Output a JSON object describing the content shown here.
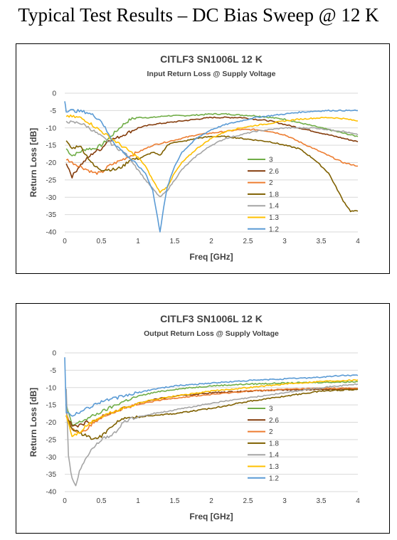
{
  "page": {
    "heading": "Typical Test Results – DC Bias Sweep @ 12 K"
  },
  "chart_data": [
    {
      "type": "line",
      "title": "CITLF3 SN1006L 12 K",
      "subtitle": "Input Return Loss @ Supply Voltage",
      "xlabel": "Freq [GHz]",
      "ylabel": "Return Loss [dB]",
      "xlim": [
        0,
        4
      ],
      "ylim": [
        -40,
        0
      ],
      "xticks": [
        "0",
        "0.5",
        "1",
        "1.5",
        "2",
        "2.5",
        "3",
        "3.5",
        "4"
      ],
      "yticks": [
        "0",
        "-5",
        "-10",
        "-15",
        "-20",
        "-25",
        "-30",
        "-35",
        "-40"
      ],
      "grid": true,
      "legend_position": "right",
      "series": [
        {
          "name": "3",
          "color": "#70ad47",
          "x": [
            0.02,
            0.1,
            0.2,
            0.3,
            0.4,
            0.5,
            0.6,
            0.7,
            0.8,
            0.9,
            1.0,
            1.2,
            1.4,
            1.6,
            1.8,
            2.0,
            2.2,
            2.4,
            2.6,
            2.8,
            3.0,
            3.2,
            3.4,
            3.6,
            3.8,
            4.0
          ],
          "y": [
            -16,
            -18,
            -17,
            -16,
            -16,
            -15,
            -13,
            -11,
            -9,
            -7.5,
            -7,
            -7,
            -6.5,
            -6.5,
            -6.3,
            -6,
            -6,
            -6.3,
            -6.5,
            -7,
            -7.5,
            -8.5,
            -9.5,
            -10.5,
            -11.5,
            -12.5
          ]
        },
        {
          "name": "2.6",
          "color": "#843c0c",
          "x": [
            0.02,
            0.1,
            0.2,
            0.3,
            0.4,
            0.5,
            0.6,
            0.7,
            0.8,
            0.9,
            1.0,
            1.2,
            1.4,
            1.6,
            1.8,
            2.0,
            2.2,
            2.4,
            2.6,
            2.8,
            3.0,
            3.2,
            3.4,
            3.6,
            3.8,
            4.0
          ],
          "y": [
            -20,
            -24,
            -21,
            -19,
            -17,
            -16,
            -13.5,
            -13,
            -12,
            -11,
            -10,
            -9,
            -8.5,
            -8,
            -7.5,
            -7,
            -7,
            -7,
            -7.5,
            -8,
            -9,
            -10,
            -11,
            -12,
            -13,
            -14
          ]
        },
        {
          "name": "2",
          "color": "#ed7d31",
          "x": [
            0.02,
            0.1,
            0.2,
            0.3,
            0.4,
            0.5,
            0.6,
            0.7,
            0.8,
            1.0,
            1.2,
            1.4,
            1.6,
            1.8,
            2.0,
            2.2,
            2.4,
            2.6,
            2.8,
            3.0,
            3.2,
            3.4,
            3.6,
            3.8,
            4.0
          ],
          "y": [
            -19,
            -20,
            -21,
            -22,
            -23,
            -23,
            -21,
            -20,
            -19,
            -17,
            -15,
            -14,
            -13,
            -12,
            -11.5,
            -11,
            -10.5,
            -10.5,
            -11,
            -12,
            -14,
            -16,
            -18,
            -20,
            -21
          ]
        },
        {
          "name": "1.8",
          "color": "#7f6000",
          "x": [
            0.02,
            0.1,
            0.2,
            0.3,
            0.4,
            0.5,
            0.6,
            0.7,
            0.8,
            0.9,
            1.0,
            1.1,
            1.2,
            1.3,
            1.4,
            1.5,
            1.6,
            1.8,
            2.0,
            2.2,
            2.4,
            2.6,
            2.8,
            3.0,
            3.2,
            3.4,
            3.6,
            3.7,
            3.8,
            3.9,
            4.0
          ],
          "y": [
            -14,
            -16,
            -15,
            -18,
            -21,
            -22,
            -22,
            -22,
            -21,
            -19,
            -19,
            -18,
            -17,
            -18,
            -15,
            -14,
            -14,
            -13,
            -12.5,
            -12.5,
            -13,
            -13.5,
            -14,
            -15,
            -16,
            -19,
            -23,
            -27,
            -31,
            -34,
            -34
          ]
        },
        {
          "name": "1.4",
          "color": "#a5a5a5",
          "x": [
            0.02,
            0.1,
            0.2,
            0.3,
            0.4,
            0.5,
            0.6,
            0.7,
            0.8,
            0.9,
            1.0,
            1.1,
            1.2,
            1.3,
            1.4,
            1.5,
            1.6,
            1.8,
            2.0,
            2.2,
            2.4,
            2.6,
            2.8,
            3.0,
            3.2,
            3.4,
            3.6,
            3.8,
            4.0
          ],
          "y": [
            -8,
            -8.5,
            -8.5,
            -9.5,
            -11,
            -12.5,
            -14,
            -15.5,
            -17,
            -19,
            -22,
            -25,
            -27.5,
            -30,
            -28,
            -25,
            -22,
            -18,
            -15,
            -13,
            -12,
            -11,
            -10.5,
            -10,
            -10,
            -10,
            -10.5,
            -11,
            -12
          ]
        },
        {
          "name": "1.3",
          "color": "#ffc000",
          "x": [
            0.02,
            0.1,
            0.2,
            0.3,
            0.4,
            0.5,
            0.6,
            0.7,
            0.8,
            0.9,
            1.0,
            1.1,
            1.2,
            1.3,
            1.4,
            1.5,
            1.6,
            1.8,
            2.0,
            2.2,
            2.4,
            2.6,
            2.8,
            3.0,
            3.2,
            3.4,
            3.6,
            3.8,
            4.0
          ],
          "y": [
            -6.5,
            -6.8,
            -7,
            -8,
            -9.5,
            -11,
            -12.5,
            -14,
            -15.5,
            -17,
            -18.5,
            -21,
            -25,
            -28.5,
            -27,
            -23,
            -20,
            -16,
            -13,
            -11,
            -10,
            -9.3,
            -8.7,
            -8,
            -7.5,
            -7.2,
            -7,
            -7.3,
            -8
          ]
        },
        {
          "name": "1.2",
          "color": "#5b9bd5",
          "x": [
            0.0,
            0.02,
            0.1,
            0.2,
            0.3,
            0.4,
            0.5,
            0.55,
            0.6,
            0.7,
            0.8,
            0.9,
            1.0,
            1.1,
            1.2,
            1.25,
            1.3,
            1.35,
            1.4,
            1.5,
            1.6,
            1.8,
            2.0,
            2.2,
            2.4,
            2.6,
            2.8,
            3.0,
            3.2,
            3.4,
            3.6,
            3.8,
            4.0
          ],
          "y": [
            -2,
            -5,
            -5,
            -5.2,
            -5.5,
            -6.5,
            -8,
            -10,
            -12,
            -15,
            -17,
            -19,
            -21,
            -23,
            -28,
            -34,
            -40,
            -33,
            -27,
            -21,
            -17,
            -13,
            -10.5,
            -9,
            -8,
            -7,
            -6.5,
            -6,
            -5.5,
            -5.2,
            -5,
            -5,
            -5
          ]
        }
      ]
    },
    {
      "type": "line",
      "title": "CITLF3 SN1006L 12 K",
      "subtitle": "Output Return Loss @ Supply Voltage",
      "xlabel": "Freq [GHz]",
      "ylabel": "Return Loss [dB]",
      "xlim": [
        0,
        4
      ],
      "ylim": [
        -40,
        0
      ],
      "xticks": [
        "0",
        "0.5",
        "1",
        "1.5",
        "2",
        "2.5",
        "3",
        "3.5",
        "4"
      ],
      "yticks": [
        "0",
        "-5",
        "-10",
        "-15",
        "-20",
        "-25",
        "-30",
        "-35",
        "-40"
      ],
      "grid": true,
      "legend_position": "right",
      "series": [
        {
          "name": "3",
          "color": "#70ad47",
          "x": [
            0.02,
            0.1,
            0.2,
            0.3,
            0.4,
            0.5,
            0.6,
            0.8,
            1.0,
            1.2,
            1.5,
            2.0,
            2.5,
            3.0,
            3.5,
            4.0
          ],
          "y": [
            -15,
            -21,
            -20,
            -19,
            -18,
            -17,
            -16,
            -14,
            -12.5,
            -11.5,
            -10.5,
            -9.5,
            -9,
            -8.7,
            -8.5,
            -8.3
          ]
        },
        {
          "name": "2.6",
          "color": "#843c0c",
          "x": [
            0.02,
            0.1,
            0.2,
            0.3,
            0.4,
            0.5,
            0.6,
            0.8,
            1.0,
            1.2,
            1.5,
            2.0,
            2.5,
            3.0,
            3.5,
            4.0
          ],
          "y": [
            -18,
            -21,
            -21,
            -20,
            -19.5,
            -18.5,
            -17.5,
            -16,
            -14.5,
            -13.5,
            -12.5,
            -11.5,
            -11,
            -10.7,
            -10.5,
            -10.5
          ]
        },
        {
          "name": "2",
          "color": "#ed7d31",
          "x": [
            0.02,
            0.1,
            0.2,
            0.3,
            0.4,
            0.5,
            0.6,
            0.8,
            1.0,
            1.2,
            1.5,
            2.0,
            2.5,
            3.0,
            3.5,
            4.0
          ],
          "y": [
            -17,
            -22,
            -23,
            -22,
            -20,
            -18.5,
            -17.5,
            -16,
            -15,
            -14,
            -13,
            -12,
            -11,
            -10.5,
            -10.2,
            -10.2
          ]
        },
        {
          "name": "1.8",
          "color": "#7f6000",
          "x": [
            0.02,
            0.1,
            0.2,
            0.3,
            0.4,
            0.5,
            0.6,
            0.7,
            0.8,
            1.0,
            1.2,
            1.5,
            2.0,
            2.5,
            3.0,
            3.5,
            4.0
          ],
          "y": [
            -18,
            -22,
            -23,
            -24,
            -25,
            -24,
            -22,
            -20,
            -19,
            -18.5,
            -18,
            -17.5,
            -16,
            -14,
            -12.5,
            -11,
            -10.5
          ]
        },
        {
          "name": "1.4",
          "color": "#a5a5a5",
          "x": [
            0.02,
            0.05,
            0.1,
            0.15,
            0.2,
            0.3,
            0.4,
            0.5,
            0.6,
            0.7,
            0.8,
            0.9,
            1.0,
            1.2,
            1.5,
            2.0,
            2.5,
            3.0,
            3.5,
            4.0
          ],
          "y": [
            -10,
            -30,
            -36,
            -38,
            -34,
            -30,
            -27,
            -25,
            -24,
            -23,
            -20,
            -19,
            -18.5,
            -17.5,
            -16.5,
            -14.5,
            -13,
            -11.5,
            -10,
            -9
          ]
        },
        {
          "name": "1.3",
          "color": "#ffc000",
          "x": [
            0.02,
            0.1,
            0.2,
            0.3,
            0.4,
            0.5,
            0.6,
            0.8,
            1.0,
            1.2,
            1.5,
            2.0,
            2.5,
            3.0,
            3.5,
            4.0
          ],
          "y": [
            -18,
            -24,
            -23,
            -21,
            -19.5,
            -18.5,
            -17.5,
            -16,
            -14.5,
            -13.5,
            -12.5,
            -11,
            -10,
            -9,
            -8.2,
            -7.8
          ]
        },
        {
          "name": "1.2",
          "color": "#5b9bd5",
          "x": [
            0.0,
            0.02,
            0.1,
            0.2,
            0.3,
            0.4,
            0.5,
            0.6,
            0.8,
            1.0,
            1.2,
            1.5,
            2.0,
            2.5,
            3.0,
            3.5,
            3.8,
            4.0
          ],
          "y": [
            -1,
            -17,
            -18,
            -17,
            -16,
            -15,
            -14,
            -13.5,
            -12.5,
            -11.5,
            -10.5,
            -9.5,
            -8.7,
            -8,
            -7.5,
            -7,
            -6.5,
            -6.5
          ]
        }
      ]
    }
  ]
}
